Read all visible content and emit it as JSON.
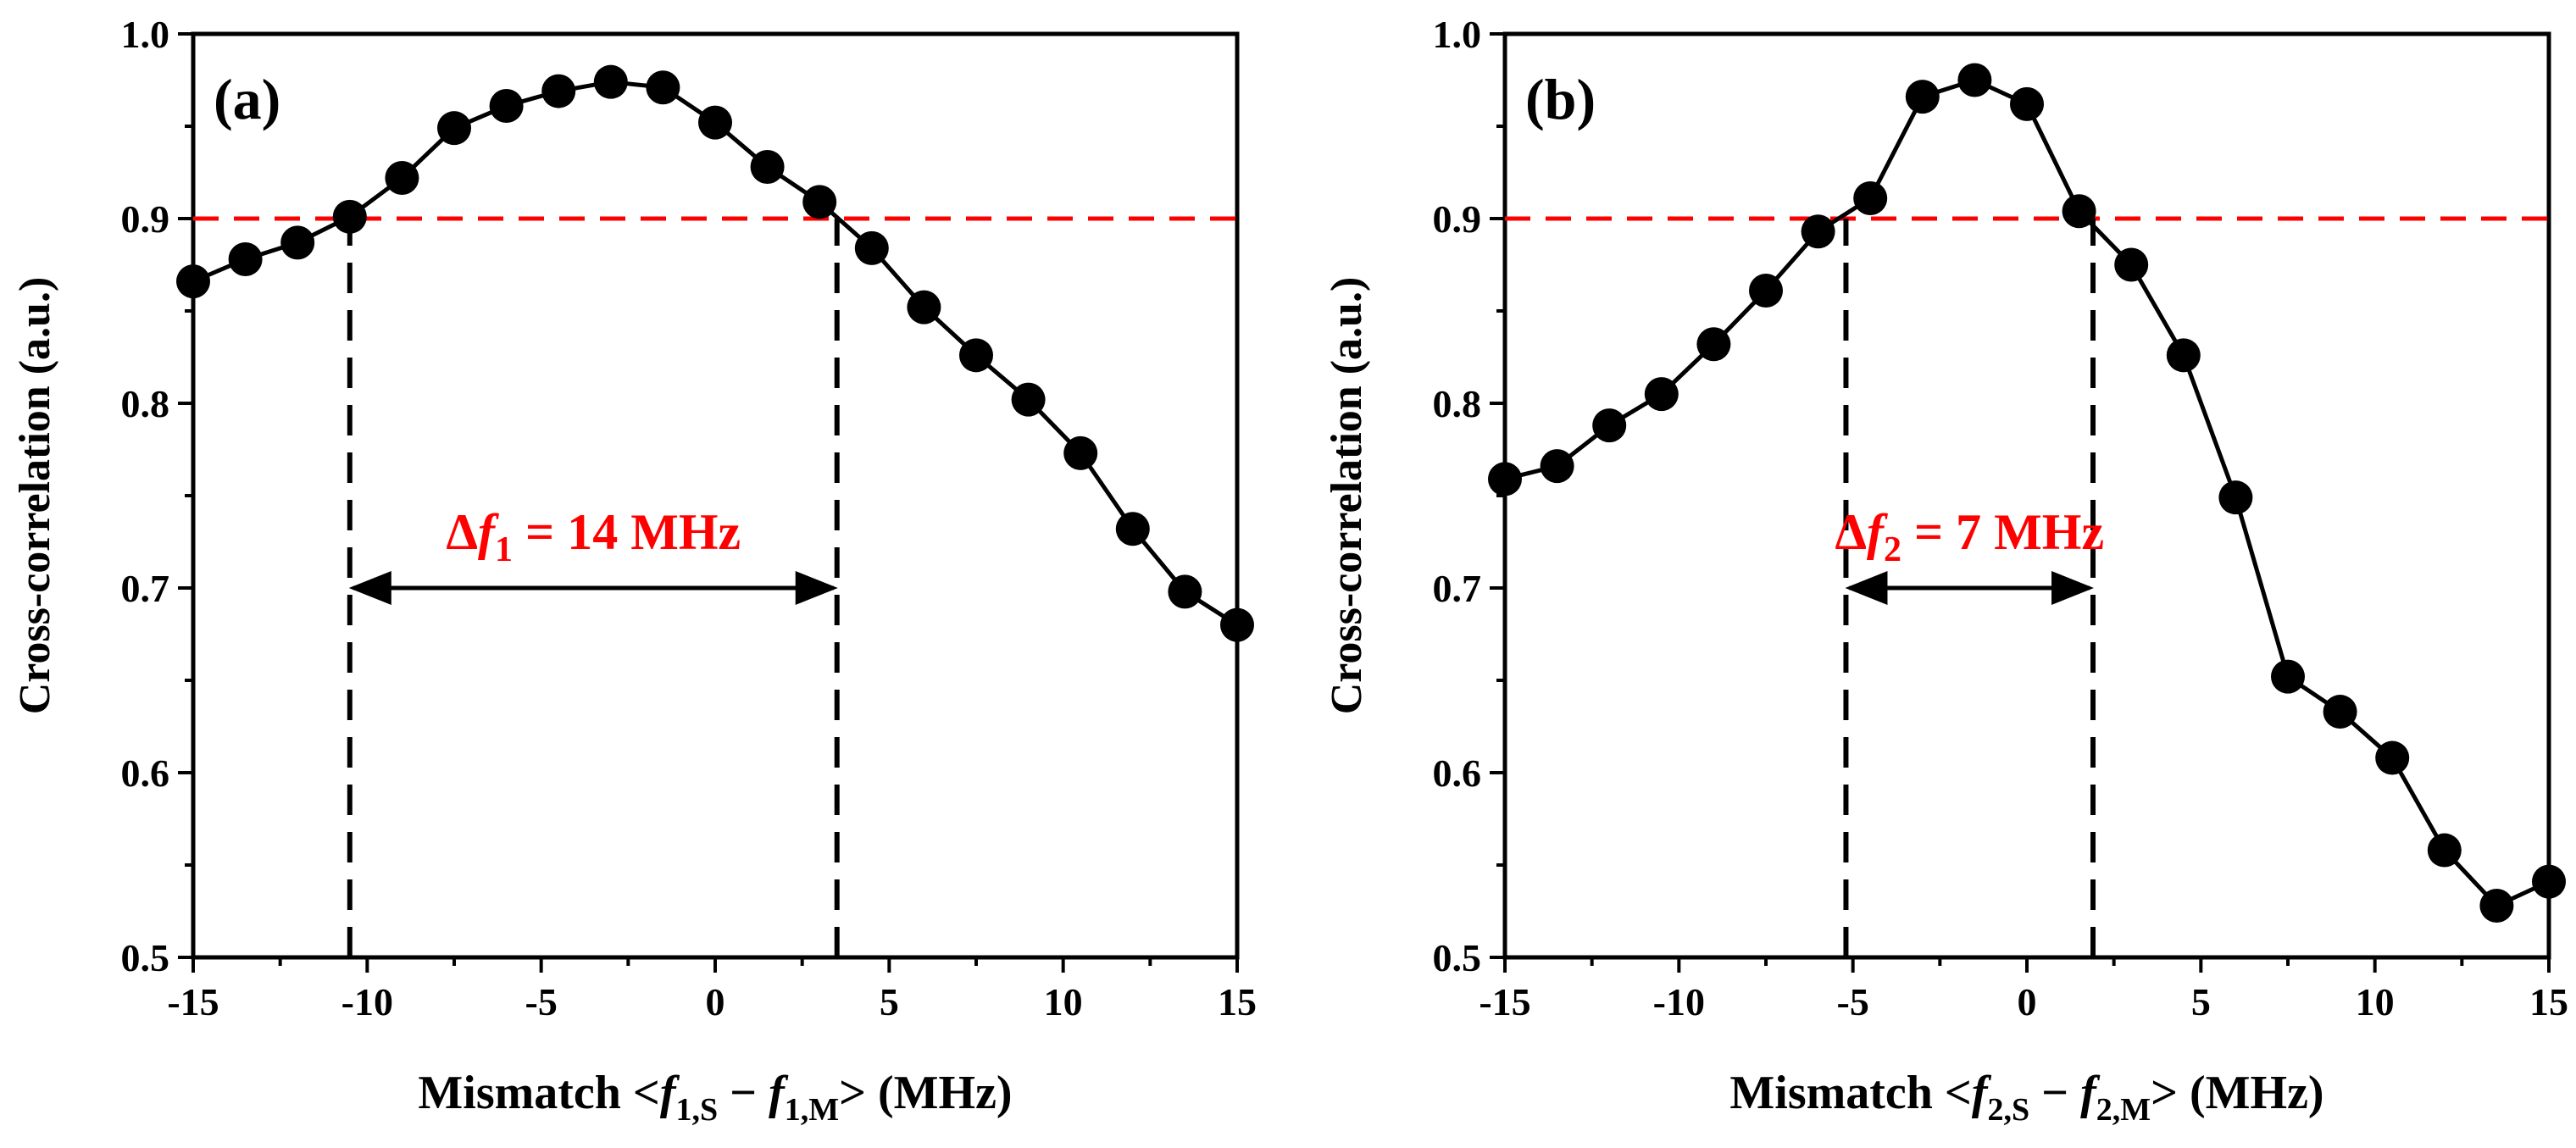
{
  "chart_data": [
    {
      "type": "line",
      "panel_label": "(a)",
      "xlabel": "Mismatch",
      "xlabel_expr": {
        "lt": "<",
        "f1": "f",
        "sub1": "1,S",
        "minus": "−",
        "f2": "f",
        "sub2": "1,M",
        "gt": ">",
        "unit": "(MHz)"
      },
      "ylabel": "Cross-correlation (a.u.)",
      "xlim": [
        -15,
        15
      ],
      "ylim": [
        0.5,
        1.0
      ],
      "xticks": [
        -15,
        -10,
        -5,
        0,
        5,
        10,
        15
      ],
      "xtick_labels": [
        "-15",
        "-10",
        "-5",
        "0",
        "5",
        "10",
        "15"
      ],
      "yticks": [
        0.5,
        0.6,
        0.7,
        0.8,
        0.9,
        1.0
      ],
      "ytick_labels": [
        "0.5",
        "0.6",
        "0.7",
        "0.8",
        "0.9",
        "1.0"
      ],
      "x": [
        -15,
        -13.5,
        -12,
        -10.5,
        -9,
        -7.5,
        -6,
        -4.5,
        -3,
        -1.5,
        0,
        1.5,
        3,
        4.5,
        6,
        7.5,
        9,
        10.5,
        12,
        13.5,
        15
      ],
      "values": [
        0.866,
        0.878,
        0.887,
        0.901,
        0.922,
        0.949,
        0.961,
        0.969,
        0.974,
        0.971,
        0.952,
        0.928,
        0.909,
        0.884,
        0.852,
        0.826,
        0.802,
        0.773,
        0.732,
        0.698,
        0.68
      ],
      "threshold": 0.9,
      "bandwidth_edges": [
        -10.5,
        3.5
      ],
      "annotation": {
        "delta": "Δ",
        "f": "f",
        "sub": "1",
        "rest": " = 14 MHz",
        "arrow_y": 0.7
      },
      "colors": {
        "series": "#000000",
        "threshold": "#ff0000",
        "annotation": "#ff0000"
      }
    },
    {
      "type": "line",
      "panel_label": "(b)",
      "xlabel": "Mismatch",
      "xlabel_expr": {
        "lt": "<",
        "f1": "f",
        "sub1": "2,S",
        "minus": "−",
        "f2": "f",
        "sub2": "2,M",
        "gt": ">",
        "unit": "(MHz)"
      },
      "ylabel": "Cross-correlation (a.u.)",
      "xlim": [
        -15,
        15
      ],
      "ylim": [
        0.5,
        1.0
      ],
      "xticks": [
        -15,
        -10,
        -5,
        0,
        5,
        10,
        15
      ],
      "xtick_labels": [
        "-15",
        "-10",
        "-5",
        "0",
        "5",
        "10",
        "15"
      ],
      "yticks": [
        0.5,
        0.6,
        0.7,
        0.8,
        0.9,
        1.0
      ],
      "ytick_labels": [
        "0.5",
        "0.6",
        "0.7",
        "0.8",
        "0.9",
        "1.0"
      ],
      "x": [
        -15,
        -13.5,
        -12,
        -10.5,
        -9,
        -7.5,
        -6,
        -4.5,
        -3,
        -1.5,
        0,
        1.5,
        3,
        4.5,
        6,
        7.5,
        9,
        10.5,
        12,
        13.5,
        15
      ],
      "values": [
        0.759,
        0.766,
        0.788,
        0.805,
        0.832,
        0.861,
        0.893,
        0.911,
        0.966,
        0.975,
        0.962,
        0.904,
        0.875,
        0.826,
        0.749,
        0.652,
        0.633,
        0.608,
        0.558,
        0.528,
        0.541
      ],
      "threshold": 0.9,
      "bandwidth_edges": [
        -5.2,
        1.9
      ],
      "annotation": {
        "delta": "Δ",
        "f": "f",
        "sub": "2",
        "rest": " = 7 MHz",
        "arrow_y": 0.7
      },
      "colors": {
        "series": "#000000",
        "threshold": "#ff0000",
        "annotation": "#ff0000"
      }
    }
  ]
}
